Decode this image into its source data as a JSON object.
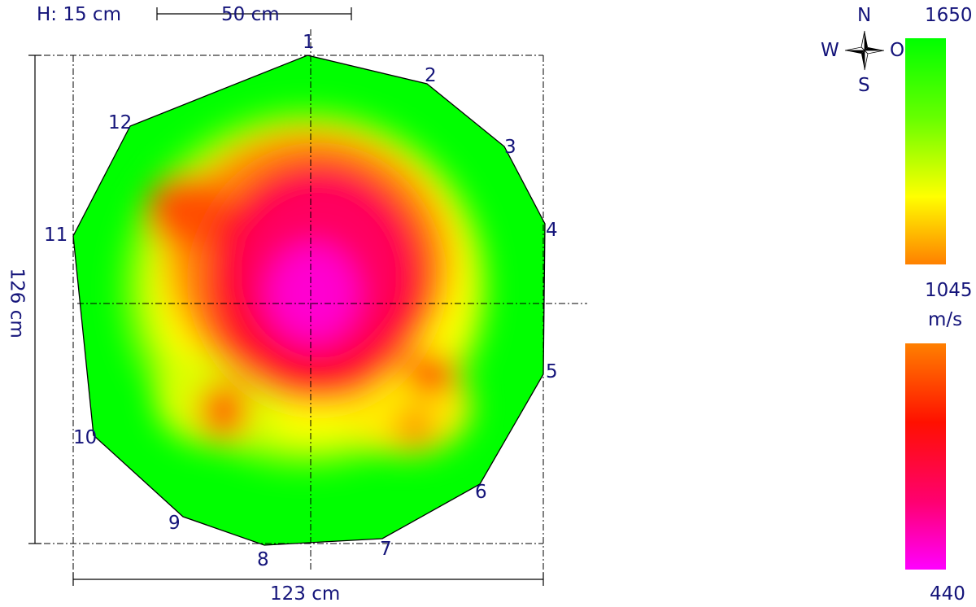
{
  "header": {
    "height_label": "H: 15 cm",
    "scale_label": "50 cm"
  },
  "dimensions": {
    "vertical": "126 cm",
    "horizontal": "123 cm"
  },
  "compass": {
    "north": "N",
    "south": "S",
    "west": "W",
    "east": "O"
  },
  "sensors": [
    "1",
    "2",
    "3",
    "4",
    "5",
    "6",
    "7",
    "8",
    "9",
    "10",
    "11",
    "12"
  ],
  "legend": {
    "max": "1650",
    "mid": "1045",
    "unit": "m/s",
    "min": "440",
    "colors": {
      "high": "#00ff00",
      "upper_mid": "#ffff00",
      "mid": "#ff8000",
      "low_mid": "#ff0000",
      "low": "#ff00ff"
    }
  }
}
